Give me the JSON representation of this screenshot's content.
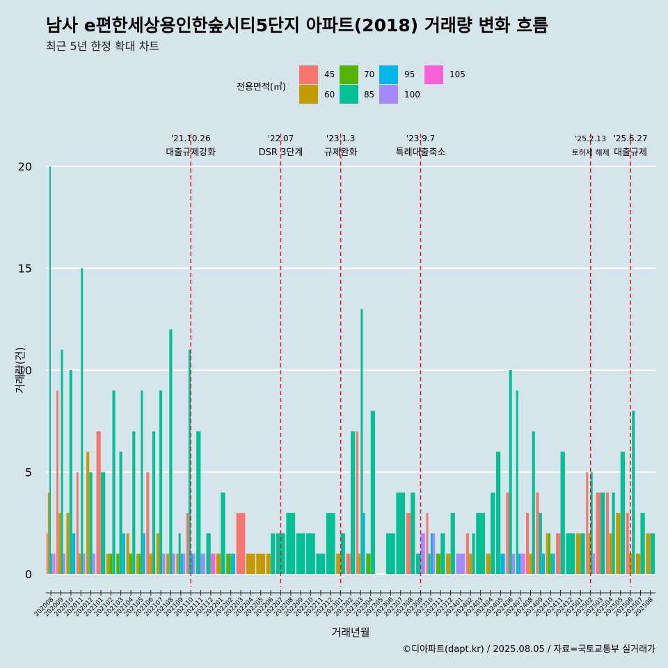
{
  "title": "남사 e편한세상용인한숲시티5단지 아파트(2018) 거래량 변화 흐름",
  "subtitle": "최근 5년 한정 확대 차트",
  "caption": "©디아파트(dapt.kr) / 2025.08.05 / 자료=국토교통부 실거래가",
  "legend": {
    "title": "전용면적(㎡)",
    "items": [
      {
        "label": "45",
        "color": "#F8766D"
      },
      {
        "label": "60",
        "color": "#C49A00"
      },
      {
        "label": "70",
        "color": "#53B400"
      },
      {
        "label": "85",
        "color": "#00C094"
      },
      {
        "label": "95",
        "color": "#00B6EB"
      },
      {
        "label": "100",
        "color": "#A58AFF"
      },
      {
        "label": "105",
        "color": "#FB61D7"
      }
    ]
  },
  "chart_data": {
    "type": "bar",
    "xlabel": "거래년월",
    "ylabel": "거래량(건)",
    "ylim": [
      0,
      21
    ],
    "yticks": [
      0,
      5,
      10,
      15,
      20
    ],
    "grid": true,
    "categories": [
      "202008",
      "202009",
      "202010",
      "202011",
      "202012",
      "202101",
      "202102",
      "202103",
      "202104",
      "202105",
      "202106",
      "202107",
      "202108",
      "202109",
      "202110",
      "202111",
      "202112",
      "202201",
      "202202",
      "202203",
      "202204",
      "202205",
      "202206",
      "202207",
      "202208",
      "202209",
      "202210",
      "202211",
      "202212",
      "202301",
      "202302",
      "202303",
      "202304",
      "202305",
      "202306",
      "202307",
      "202308",
      "202309",
      "202310",
      "202311",
      "202312",
      "202401",
      "202402",
      "202403",
      "202404",
      "202405",
      "202406",
      "202407",
      "202408",
      "202409",
      "202410",
      "202411",
      "202412",
      "202501",
      "202502",
      "202503",
      "202504",
      "202505",
      "202506",
      "202507",
      "202508"
    ],
    "series": [
      {
        "name": "45",
        "values": {
          "202008": 2,
          "202009": 9,
          "202011": 5,
          "202101": 7,
          "202106": 5,
          "202110": 3,
          "202203": 3,
          "202302": 1,
          "202303": 7,
          "202308": 3,
          "202310": 3,
          "202402": 2,
          "202406": 4,
          "202408": 3,
          "202409": 4,
          "202411": 2,
          "202502": 5,
          "202503": 4,
          "202504": 4,
          "202506": 3
        }
      },
      {
        "name": "60",
        "values": {
          "202008": 4,
          "202009": 3,
          "202010": 3,
          "202011": 1,
          "202012": 6,
          "202102": 1,
          "202104": 2,
          "202105": 1,
          "202106": 1,
          "202107": 2,
          "202108": 1,
          "202109": 1,
          "202201": 1,
          "202204": 1,
          "202205": 1,
          "202206": 1,
          "202301": 1,
          "202303": 1,
          "202312": 1,
          "202402": 1,
          "202404": 1,
          "202408": 1,
          "202410": 2,
          "202501": 2,
          "202502": 2,
          "202504": 2,
          "202505": 3,
          "202506": 1,
          "202507": 1,
          "202508": 2
        }
      },
      {
        "name": "70",
        "values": {
          "202102": 1,
          "202103": 1,
          "202104": 1,
          "202105": 1,
          "202202": 1,
          "202304": 1,
          "202311": 1,
          "202410": 2
        }
      },
      {
        "name": "85",
        "values": {
          "202008": 20,
          "202009": 11,
          "202010": 10,
          "202011": 15,
          "202012": 5,
          "202101": 5,
          "202102": 9,
          "202103": 6,
          "202104": 7,
          "202105": 9,
          "202106": 7,
          "202107": 9,
          "202108": 12,
          "202109": 2,
          "202110": 11,
          "202111": 7,
          "202112": 2,
          "202201": 4,
          "202206": 2,
          "202207": 2,
          "202208": 3,
          "202209": 2,
          "202210": 2,
          "202211": 1,
          "202212": 3,
          "202301": 2,
          "202302": 7,
          "202303": 13,
          "202304": 8,
          "202306": 2,
          "202307": 4,
          "202308": 4,
          "202309": 1,
          "202310": 1,
          "202311": 2,
          "202312": 3,
          "202402": 2,
          "202403": 3,
          "202404": 4,
          "202405": 6,
          "202406": 10,
          "202407": 9,
          "202408": 7,
          "202409": 3,
          "202410": 1,
          "202411": 6,
          "202412": 2,
          "202501": 2,
          "202502": 5,
          "202503": 4,
          "202504": 4,
          "202505": 6,
          "202506": 8,
          "202507": 3,
          "202508": 2
        }
      },
      {
        "name": "95",
        "values": {
          "202008": 1,
          "202010": 2,
          "202103": 2,
          "202105": 2,
          "202109": 1,
          "202110": 1,
          "202202": 1,
          "202303": 3,
          "202310": 2,
          "202405": 1,
          "202407": 1,
          "202409": 1,
          "202410": 1
        }
      },
      {
        "name": "100",
        "values": {
          "202008": 1,
          "202009": 1,
          "202011": 1,
          "202012": 1,
          "202107": 1,
          "202108": 1,
          "202109": 1,
          "202110": 1,
          "202111": 1,
          "202309": 2,
          "202310": 2,
          "202401": 1,
          "202406": 1,
          "202407": 1,
          "202502": 1
        }
      },
      {
        "name": "105",
        "values": {
          "202008": 1,
          "202112": 1,
          "202407": 1
        }
      }
    ],
    "events": [
      {
        "date_line1": "'21.10.26",
        "date_line2": "대출규제강화",
        "month": "202110"
      },
      {
        "date_line1": "'22.07",
        "date_line2": "DSR 3단계",
        "month": "202207"
      },
      {
        "date_line1": "'23.1.3",
        "date_line2": "규제완화",
        "month": "202301"
      },
      {
        "date_line1": "'23.9.7",
        "date_line2": "특례대출축소",
        "month": "202309"
      },
      {
        "date_line1": "'25.2.13",
        "date_line2": "토허제 해제",
        "month": "202502"
      },
      {
        "date_line1": "'25.6.27",
        "date_line2": "대출규제",
        "month": "202506"
      }
    ]
  }
}
